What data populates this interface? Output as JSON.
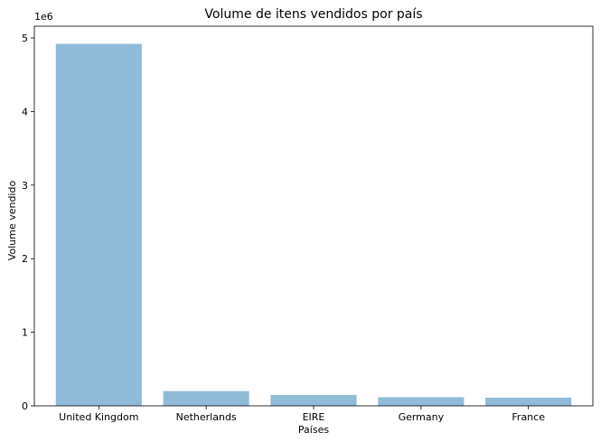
{
  "chart_data": {
    "type": "bar",
    "title": "Volume de itens vendidos por país",
    "xlabel": "Países",
    "ylabel": "Volume vendido",
    "y_offset_label": "1e6",
    "categories": [
      "United Kingdom",
      "Netherlands",
      "EIRE",
      "Germany",
      "France"
    ],
    "values": [
      4920000,
      200000,
      148000,
      117000,
      111000
    ],
    "ylim": [
      0,
      5160000
    ],
    "y_ticks": [
      0,
      1000000,
      2000000,
      3000000,
      4000000,
      5000000
    ],
    "y_tick_labels": [
      "0",
      "1",
      "2",
      "3",
      "4",
      "5"
    ],
    "grid": false,
    "bar_color": "#8fbbd9"
  }
}
